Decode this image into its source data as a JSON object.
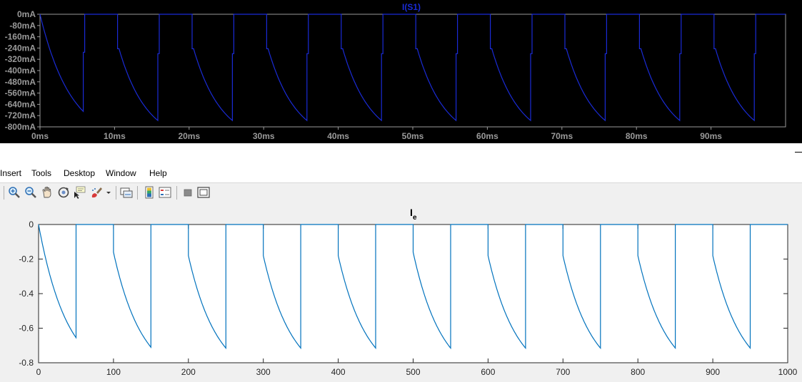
{
  "ltspice": {
    "title": "I(S1)",
    "y_ticks": [
      "0mA",
      "-80mA",
      "-160mA",
      "-240mA",
      "-320mA",
      "-400mA",
      "-480mA",
      "-560mA",
      "-640mA",
      "-720mA",
      "-800mA"
    ],
    "x_ticks": [
      "0ms",
      "10ms",
      "20ms",
      "30ms",
      "40ms",
      "50ms",
      "60ms",
      "70ms",
      "80ms",
      "90ms"
    ],
    "colors": {
      "background": "#000000",
      "trace": "#1a2bd6",
      "axes": "#9a9a9a"
    }
  },
  "menu": {
    "items": [
      "Insert",
      "Tools",
      "Desktop",
      "Window",
      "Help"
    ]
  },
  "toolbar": {
    "buttons": [
      "zoom-in-icon",
      "zoom-out-icon",
      "pan-icon",
      "rotate-icon",
      "data-cursor-icon",
      "brush-icon",
      "link-plot-icon",
      "colorbar-icon",
      "legend-icon",
      "hide-plot-tools-icon",
      "show-plot-tools-icon"
    ]
  },
  "matlab": {
    "title_main": "I",
    "title_sub": "e",
    "y_ticks": [
      "0",
      "-0.2",
      "-0.4",
      "-0.6",
      "-0.8"
    ],
    "x_ticks": [
      "0",
      "100",
      "200",
      "300",
      "400",
      "500",
      "600",
      "700",
      "800",
      "900",
      "1000"
    ],
    "colors": {
      "line": "#0072bd",
      "axes_bg": "#ffffff",
      "figure_bg": "#f0f0f0"
    }
  },
  "chart_data": [
    {
      "type": "line",
      "title": "I(S1)",
      "xlabel": "",
      "ylabel": "",
      "x_unit": "ms",
      "y_unit": "mA",
      "xlim": [
        0,
        100
      ],
      "ylim": [
        -800,
        0
      ],
      "grid": false,
      "series": [
        {
          "x": [
            0,
            5.8,
            5.8,
            6.0,
            6.0,
            10.4,
            10.4,
            10.6,
            10.6,
            15.8,
            15.8,
            16.0,
            16.0,
            20.4,
            20.4,
            20.6,
            20.6,
            25.8,
            25.8,
            26.0,
            26.0,
            30.4,
            30.4,
            30.6,
            30.6,
            35.8,
            35.8,
            36.0,
            36.0,
            40.4,
            40.4,
            40.6,
            40.6,
            45.8,
            45.8,
            46.0,
            46.0,
            50.4,
            50.4,
            50.6,
            50.6,
            55.8,
            55.8,
            56.0,
            56.0,
            60.4,
            60.4,
            60.6,
            60.6,
            65.8,
            65.8,
            66.0,
            66.0,
            70.4,
            70.4,
            70.6,
            70.6,
            75.8,
            75.8,
            76.0,
            76.0,
            80.4,
            80.4,
            80.6,
            80.6,
            85.8,
            85.8,
            86.0,
            86.0,
            90.4,
            90.4,
            90.6,
            90.6,
            95.8,
            95.8,
            96.0,
            96.0,
            100
          ],
          "y": [
            0,
            -690,
            -270,
            -270,
            0,
            0,
            -245,
            -245,
            -245,
            -755,
            -280,
            -280,
            0,
            0,
            -245,
            -245,
            -245,
            -755,
            -280,
            -280,
            0,
            0,
            -245,
            -245,
            -245,
            -755,
            -280,
            -280,
            0,
            0,
            -245,
            -245,
            -245,
            -755,
            -280,
            -280,
            0,
            0,
            -245,
            -245,
            -245,
            -755,
            -280,
            -280,
            0,
            0,
            -245,
            -245,
            -245,
            -755,
            -280,
            -280,
            0,
            0,
            -245,
            -245,
            -245,
            -755,
            -280,
            -280,
            0,
            0,
            -245,
            -245,
            -245,
            -755,
            -280,
            -280,
            0,
            0,
            -245,
            -245,
            -245,
            -755,
            -280,
            -280,
            0,
            0
          ]
        }
      ]
    },
    {
      "type": "line",
      "title": "I_e",
      "xlabel": "",
      "ylabel": "",
      "xlim": [
        0,
        1000
      ],
      "ylim": [
        -0.8,
        0
      ],
      "grid": false,
      "series": [
        {
          "x": [
            0,
            50,
            50,
            100,
            100,
            150,
            150,
            200,
            200,
            250,
            250,
            300,
            300,
            350,
            350,
            400,
            400,
            450,
            450,
            500,
            500,
            550,
            550,
            600,
            600,
            650,
            650,
            700,
            700,
            750,
            750,
            800,
            800,
            850,
            850,
            900,
            900,
            950,
            950,
            1000
          ],
          "y": [
            0,
            -0.655,
            0,
            0,
            -0.16,
            -0.71,
            0,
            0,
            -0.18,
            -0.715,
            0,
            0,
            -0.18,
            -0.715,
            0,
            0,
            -0.18,
            -0.715,
            0,
            0,
            -0.16,
            -0.715,
            0,
            0,
            -0.18,
            -0.715,
            0,
            0,
            -0.18,
            -0.715,
            0,
            0,
            -0.18,
            -0.715,
            0,
            0,
            -0.18,
            -0.715,
            0,
            0
          ]
        }
      ]
    }
  ]
}
